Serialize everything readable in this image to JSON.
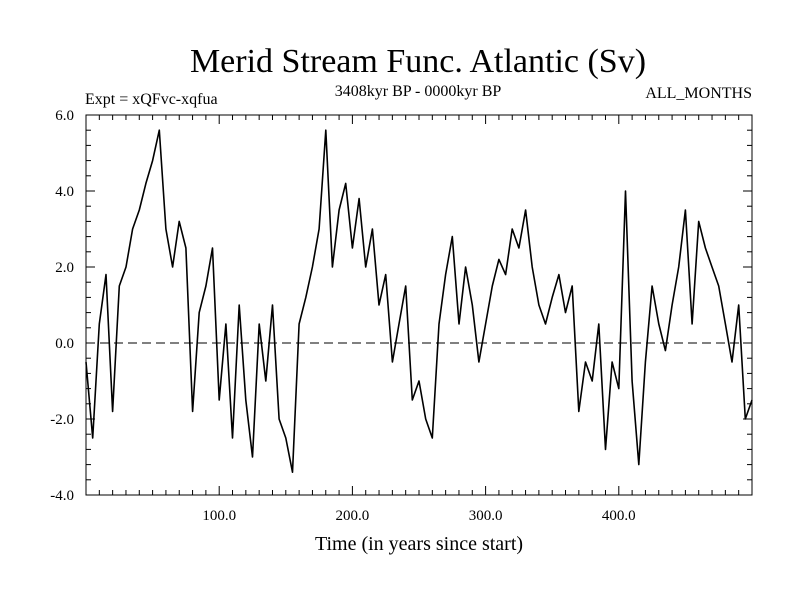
{
  "chart_data": {
    "type": "line",
    "title": "Merid Stream Func. Atlantic (Sv)",
    "subtitle_left": "Expt = xQFvc-xqfua",
    "subtitle_center": "3408kyr BP - 0000kyr BP",
    "subtitle_right": "ALL_MONTHS",
    "xlabel": "Time (in years since start)",
    "ylabel": "",
    "xlim": [
      0,
      500
    ],
    "ylim": [
      -4.0,
      6.0
    ],
    "xticks": [
      100,
      200,
      300,
      400
    ],
    "xtick_labels": [
      "100.0",
      "200.0",
      "300.0",
      "400.0"
    ],
    "yticks": [
      -4,
      -2,
      0,
      2,
      4,
      6
    ],
    "ytick_labels": [
      "-4.0",
      "-2.0",
      "0.0",
      "2.0",
      "4.0",
      "6.0"
    ],
    "reference_line": 0.0,
    "series": [
      {
        "name": "Merid Stream Func. Atlantic",
        "color": "#000000",
        "x": [
          0,
          5,
          10,
          15,
          20,
          25,
          30,
          35,
          40,
          45,
          50,
          55,
          60,
          65,
          70,
          75,
          80,
          85,
          90,
          95,
          100,
          105,
          110,
          115,
          120,
          125,
          130,
          135,
          140,
          145,
          150,
          155,
          160,
          165,
          170,
          175,
          180,
          185,
          190,
          195,
          200,
          205,
          210,
          215,
          220,
          225,
          230,
          235,
          240,
          245,
          250,
          255,
          260,
          265,
          270,
          275,
          280,
          285,
          290,
          295,
          300,
          305,
          310,
          315,
          320,
          325,
          330,
          335,
          340,
          345,
          350,
          355,
          360,
          365,
          370,
          375,
          380,
          385,
          390,
          395,
          400,
          405,
          410,
          415,
          420,
          425,
          430,
          435,
          440,
          445,
          450,
          455,
          460,
          465,
          470,
          475,
          480,
          485,
          490,
          495,
          500
        ],
        "values": [
          -0.5,
          -2.5,
          0.5,
          1.8,
          -1.8,
          1.5,
          2.0,
          3.0,
          3.5,
          4.2,
          4.8,
          5.6,
          3.0,
          2.0,
          3.2,
          2.5,
          -1.8,
          0.8,
          1.5,
          2.5,
          -1.5,
          0.5,
          -2.5,
          1.0,
          -1.5,
          -3.0,
          0.5,
          -1.0,
          1.0,
          -2.0,
          -2.5,
          -3.4,
          0.5,
          1.2,
          2.0,
          3.0,
          5.6,
          2.0,
          3.5,
          4.2,
          2.5,
          3.8,
          2.0,
          3.0,
          1.0,
          1.8,
          -0.5,
          0.5,
          1.5,
          -1.5,
          -1.0,
          -2.0,
          -2.5,
          0.5,
          1.8,
          2.8,
          0.5,
          2.0,
          1.0,
          -0.5,
          0.5,
          1.5,
          2.2,
          1.8,
          3.0,
          2.5,
          3.5,
          2.0,
          1.0,
          0.5,
          1.2,
          1.8,
          0.8,
          1.5,
          -1.8,
          -0.5,
          -1.0,
          0.5,
          -2.8,
          -0.5,
          -1.2,
          4.0,
          -1.0,
          -3.2,
          -0.5,
          1.5,
          0.5,
          -0.2,
          1.0,
          2.0,
          3.5,
          0.5,
          3.2,
          2.5,
          2.0,
          1.5,
          0.5,
          -0.5,
          1.0,
          -2.0,
          -1.5
        ]
      }
    ]
  }
}
